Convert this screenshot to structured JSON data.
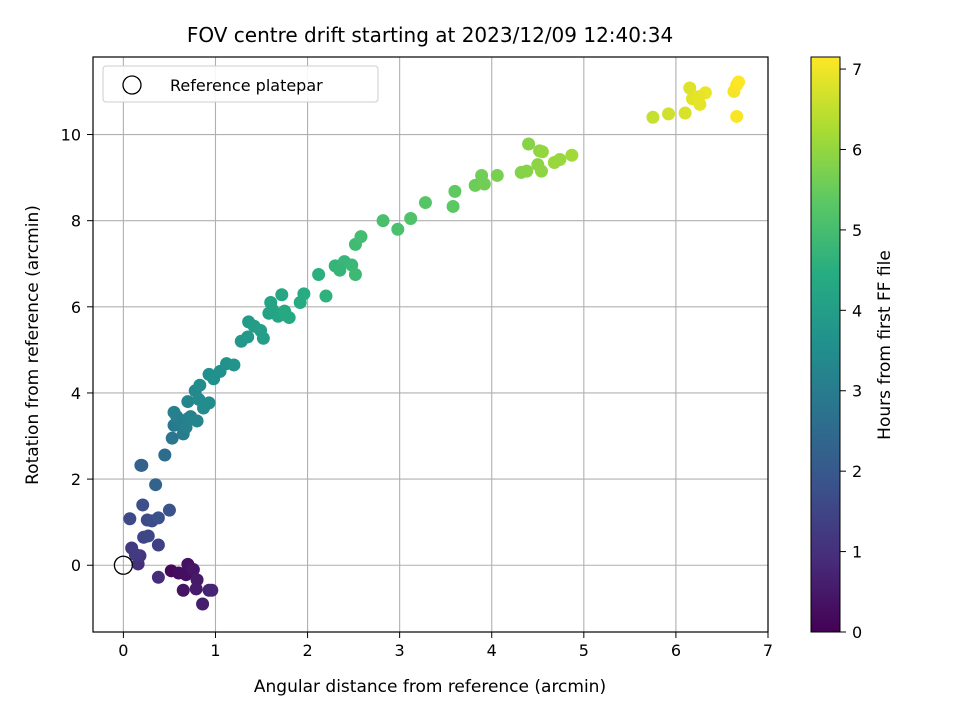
{
  "chart_data": {
    "type": "scatter",
    "title": "FOV centre drift starting at 2023/12/09 12:40:34",
    "xlabel": "Angular distance from reference (arcmin)",
    "ylabel": "Rotation from reference (arcmin)",
    "xlim": [
      -0.33,
      7.0
    ],
    "ylim": [
      -1.55,
      11.8
    ],
    "xticks": [
      0,
      1,
      2,
      3,
      4,
      5,
      6,
      7
    ],
    "yticks": [
      0,
      2,
      4,
      6,
      8,
      10
    ],
    "grid": true,
    "legend": {
      "placement": "upper-left",
      "entries": [
        {
          "label": "Reference platepar",
          "marker": "open-circle",
          "x": 0,
          "y": 0
        }
      ]
    },
    "colorbar": {
      "label": "Hours from first FF file",
      "colormap": "viridis",
      "range": [
        0,
        7.15
      ],
      "ticks": [
        0,
        1,
        2,
        3,
        4,
        5,
        6,
        7
      ]
    },
    "points": [
      {
        "x": 0.52,
        "y": -0.13,
        "t": 0.15
      },
      {
        "x": 0.6,
        "y": -0.18,
        "t": 0.25
      },
      {
        "x": 0.68,
        "y": -0.22,
        "t": 0.3
      },
      {
        "x": 0.7,
        "y": 0.02,
        "t": 0.35
      },
      {
        "x": 0.65,
        "y": -0.58,
        "t": 0.4
      },
      {
        "x": 0.76,
        "y": -0.1,
        "t": 0.45
      },
      {
        "x": 0.8,
        "y": -0.34,
        "t": 0.5
      },
      {
        "x": 0.79,
        "y": -0.55,
        "t": 0.55
      },
      {
        "x": 0.86,
        "y": -0.9,
        "t": 0.6
      },
      {
        "x": 0.93,
        "y": -0.58,
        "t": 0.7
      },
      {
        "x": 0.96,
        "y": -0.58,
        "t": 0.75
      },
      {
        "x": 0.38,
        "y": -0.28,
        "t": 0.9
      },
      {
        "x": 0.16,
        "y": 0.03,
        "t": 1.0
      },
      {
        "x": 0.18,
        "y": 0.22,
        "t": 1.1
      },
      {
        "x": 0.09,
        "y": 0.4,
        "t": 1.2
      },
      {
        "x": 0.13,
        "y": 0.25,
        "t": 1.25
      },
      {
        "x": 0.38,
        "y": 0.47,
        "t": 1.4
      },
      {
        "x": 0.22,
        "y": 0.65,
        "t": 1.5
      },
      {
        "x": 0.27,
        "y": 0.68,
        "t": 1.55
      },
      {
        "x": 0.07,
        "y": 1.08,
        "t": 1.6
      },
      {
        "x": 0.26,
        "y": 1.05,
        "t": 1.65
      },
      {
        "x": 0.31,
        "y": 1.03,
        "t": 1.7
      },
      {
        "x": 0.21,
        "y": 1.4,
        "t": 1.75
      },
      {
        "x": 0.38,
        "y": 1.1,
        "t": 1.8
      },
      {
        "x": 0.5,
        "y": 1.28,
        "t": 1.85
      },
      {
        "x": 0.2,
        "y": 2.32,
        "t": 2.2
      },
      {
        "x": 0.19,
        "y": 2.32,
        "t": 2.25
      },
      {
        "x": 0.35,
        "y": 1.87,
        "t": 2.3
      },
      {
        "x": 0.45,
        "y": 2.56,
        "t": 2.55
      },
      {
        "x": 0.53,
        "y": 2.95,
        "t": 2.8
      },
      {
        "x": 0.55,
        "y": 3.25,
        "t": 2.9
      },
      {
        "x": 0.6,
        "y": 3.3,
        "t": 2.95
      },
      {
        "x": 0.65,
        "y": 3.05,
        "t": 3.0
      },
      {
        "x": 0.58,
        "y": 3.45,
        "t": 3.05
      },
      {
        "x": 0.7,
        "y": 3.4,
        "t": 3.1
      },
      {
        "x": 0.55,
        "y": 3.55,
        "t": 3.1
      },
      {
        "x": 0.68,
        "y": 3.2,
        "t": 3.15
      },
      {
        "x": 0.73,
        "y": 3.45,
        "t": 3.2
      },
      {
        "x": 0.8,
        "y": 3.35,
        "t": 3.25
      },
      {
        "x": 0.7,
        "y": 3.8,
        "t": 3.3
      },
      {
        "x": 0.78,
        "y": 4.05,
        "t": 3.35
      },
      {
        "x": 0.82,
        "y": 3.85,
        "t": 3.4
      },
      {
        "x": 0.87,
        "y": 3.65,
        "t": 3.45
      },
      {
        "x": 0.83,
        "y": 4.18,
        "t": 3.45
      },
      {
        "x": 0.93,
        "y": 3.77,
        "t": 3.5
      },
      {
        "x": 0.93,
        "y": 4.43,
        "t": 3.55
      },
      {
        "x": 1.05,
        "y": 4.5,
        "t": 3.6
      },
      {
        "x": 0.98,
        "y": 4.33,
        "t": 3.6
      },
      {
        "x": 1.12,
        "y": 4.68,
        "t": 3.65
      },
      {
        "x": 1.2,
        "y": 4.65,
        "t": 3.7
      },
      {
        "x": 1.28,
        "y": 5.2,
        "t": 3.8
      },
      {
        "x": 1.35,
        "y": 5.3,
        "t": 3.85
      },
      {
        "x": 1.36,
        "y": 5.65,
        "t": 3.9
      },
      {
        "x": 1.42,
        "y": 5.55,
        "t": 3.95
      },
      {
        "x": 1.49,
        "y": 5.45,
        "t": 4.0
      },
      {
        "x": 1.52,
        "y": 5.27,
        "t": 4.05
      },
      {
        "x": 1.58,
        "y": 5.85,
        "t": 4.1
      },
      {
        "x": 1.62,
        "y": 5.93,
        "t": 4.15
      },
      {
        "x": 1.6,
        "y": 6.1,
        "t": 4.15
      },
      {
        "x": 1.68,
        "y": 5.78,
        "t": 4.2
      },
      {
        "x": 1.72,
        "y": 6.28,
        "t": 4.25
      },
      {
        "x": 1.77,
        "y": 5.8,
        "t": 4.3
      },
      {
        "x": 1.75,
        "y": 5.9,
        "t": 4.3
      },
      {
        "x": 1.8,
        "y": 5.75,
        "t": 4.35
      },
      {
        "x": 1.92,
        "y": 6.1,
        "t": 4.4
      },
      {
        "x": 1.96,
        "y": 6.3,
        "t": 4.45
      },
      {
        "x": 2.12,
        "y": 6.75,
        "t": 4.55
      },
      {
        "x": 2.2,
        "y": 6.25,
        "t": 4.6
      },
      {
        "x": 2.3,
        "y": 6.95,
        "t": 4.7
      },
      {
        "x": 2.35,
        "y": 6.85,
        "t": 4.72
      },
      {
        "x": 2.4,
        "y": 7.05,
        "t": 4.75
      },
      {
        "x": 2.48,
        "y": 6.97,
        "t": 4.8
      },
      {
        "x": 2.52,
        "y": 6.75,
        "t": 4.85
      },
      {
        "x": 2.52,
        "y": 7.45,
        "t": 4.9
      },
      {
        "x": 2.58,
        "y": 7.63,
        "t": 4.95
      },
      {
        "x": 2.82,
        "y": 8.0,
        "t": 5.05
      },
      {
        "x": 2.98,
        "y": 7.8,
        "t": 5.1
      },
      {
        "x": 3.12,
        "y": 8.05,
        "t": 5.15
      },
      {
        "x": 3.28,
        "y": 8.42,
        "t": 5.25
      },
      {
        "x": 3.58,
        "y": 8.33,
        "t": 5.35
      },
      {
        "x": 3.6,
        "y": 8.68,
        "t": 5.4
      },
      {
        "x": 3.82,
        "y": 8.82,
        "t": 5.55
      },
      {
        "x": 3.89,
        "y": 9.05,
        "t": 5.6
      },
      {
        "x": 3.92,
        "y": 8.85,
        "t": 5.6
      },
      {
        "x": 4.06,
        "y": 9.05,
        "t": 5.7
      },
      {
        "x": 4.32,
        "y": 9.12,
        "t": 5.8
      },
      {
        "x": 4.38,
        "y": 9.15,
        "t": 5.85
      },
      {
        "x": 4.4,
        "y": 9.78,
        "t": 5.85
      },
      {
        "x": 4.5,
        "y": 9.3,
        "t": 5.9
      },
      {
        "x": 4.52,
        "y": 9.62,
        "t": 5.95
      },
      {
        "x": 4.54,
        "y": 9.15,
        "t": 5.95
      },
      {
        "x": 4.55,
        "y": 9.6,
        "t": 6.0
      },
      {
        "x": 4.68,
        "y": 9.35,
        "t": 6.05
      },
      {
        "x": 4.74,
        "y": 9.42,
        "t": 6.05
      },
      {
        "x": 4.87,
        "y": 9.52,
        "t": 6.15
      },
      {
        "x": 5.75,
        "y": 10.4,
        "t": 6.55
      },
      {
        "x": 5.92,
        "y": 10.48,
        "t": 6.65
      },
      {
        "x": 6.1,
        "y": 10.5,
        "t": 6.75
      },
      {
        "x": 6.15,
        "y": 11.08,
        "t": 6.8
      },
      {
        "x": 6.18,
        "y": 10.83,
        "t": 6.85
      },
      {
        "x": 6.26,
        "y": 10.7,
        "t": 6.9
      },
      {
        "x": 6.32,
        "y": 10.97,
        "t": 6.95
      },
      {
        "x": 6.25,
        "y": 10.88,
        "t": 6.9
      },
      {
        "x": 6.63,
        "y": 11.0,
        "t": 7.05
      },
      {
        "x": 6.66,
        "y": 11.15,
        "t": 7.1
      },
      {
        "x": 6.68,
        "y": 11.22,
        "t": 7.15
      },
      {
        "x": 6.66,
        "y": 10.42,
        "t": 7.1
      }
    ]
  }
}
